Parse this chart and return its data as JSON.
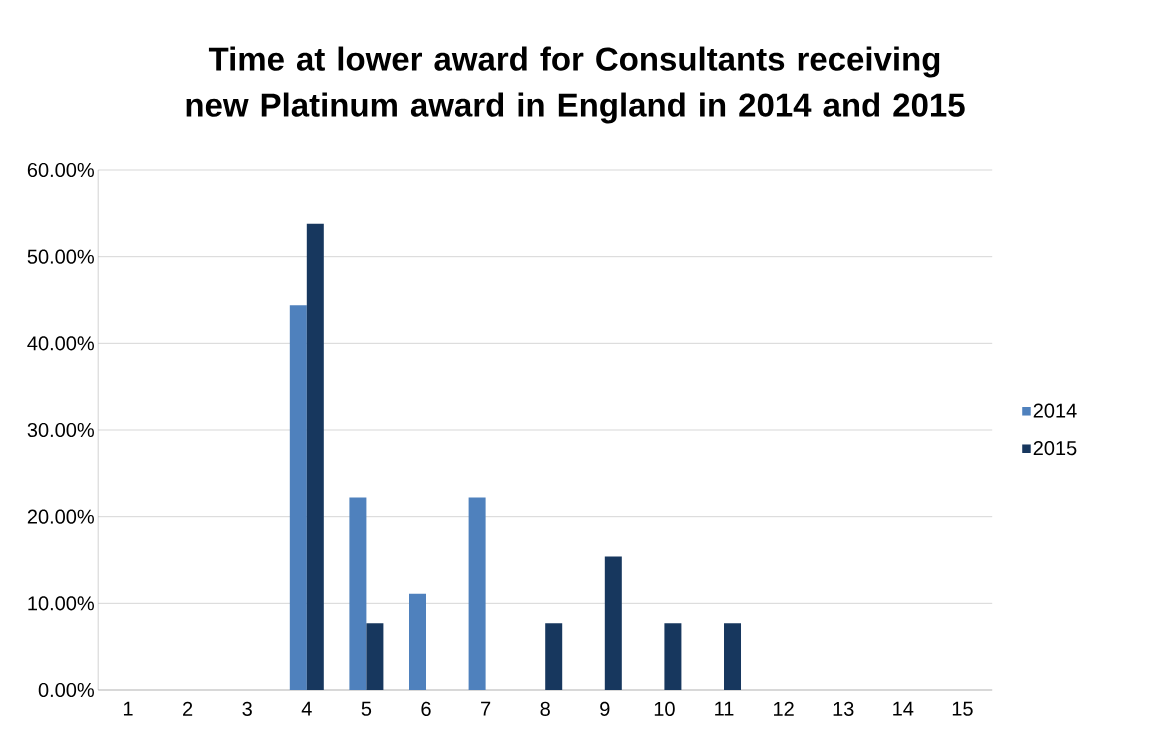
{
  "chart_data": {
    "type": "bar",
    "title": "Time at lower award for Consultants receiving new Platinum award in England in 2014 and 2015",
    "categories": [
      "1",
      "2",
      "3",
      "4",
      "5",
      "6",
      "7",
      "8",
      "9",
      "10",
      "11",
      "12",
      "13",
      "14",
      "15"
    ],
    "series": [
      {
        "name": "2014",
        "color": "#4f81bd",
        "values": [
          0,
          0,
          0,
          44.4,
          22.2,
          11.1,
          22.2,
          0,
          0,
          0,
          0,
          0,
          0,
          0,
          0
        ]
      },
      {
        "name": "2015",
        "color": "#17375e",
        "values": [
          0,
          0,
          0,
          53.8,
          7.7,
          0,
          0,
          7.7,
          15.4,
          7.7,
          7.7,
          0,
          0,
          0,
          0
        ]
      }
    ],
    "ylim": [
      0,
      60
    ],
    "yticks": [
      {
        "value": 0,
        "label": "0.00%"
      },
      {
        "value": 10,
        "label": "10.00%"
      },
      {
        "value": 20,
        "label": "20.00%"
      },
      {
        "value": 30,
        "label": "30.00%"
      },
      {
        "value": 40,
        "label": "40.00%"
      },
      {
        "value": 50,
        "label": "50.00%"
      },
      {
        "value": 60,
        "label": "60.00%"
      }
    ],
    "grid": "y",
    "legend": "right"
  }
}
